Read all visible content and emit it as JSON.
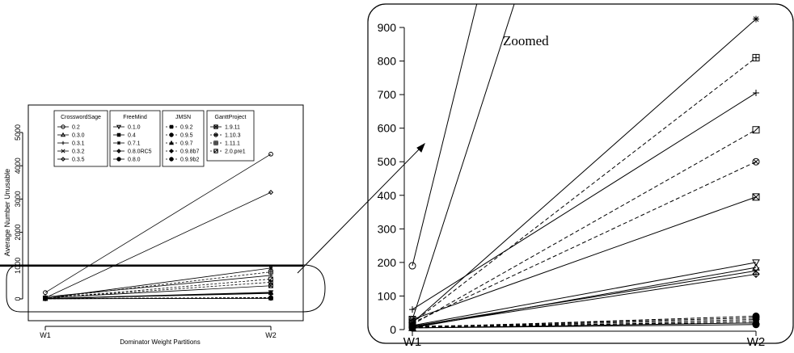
{
  "chart_data": [
    {
      "type": "line",
      "title": "",
      "xlabel": "Dominator Weight Partitions",
      "ylabel": "Average Number Unusable",
      "categories": [
        "W1",
        "W2"
      ],
      "ylim": [
        0,
        5600
      ],
      "yticks": [
        0,
        1000,
        2000,
        3000,
        4000,
        5000
      ],
      "threshold_line": 1000,
      "legend_placement": "top-left",
      "legend_groups": [
        {
          "name": "CrosswordSage",
          "series": [
            {
              "name": "0.2",
              "marker": "circle",
              "dash": "solid",
              "values": [
                190,
                4350
              ]
            },
            {
              "name": "0.3.0",
              "marker": "triangle-up",
              "dash": "solid",
              "values": [
                5,
                185
              ]
            },
            {
              "name": "0.3.1",
              "marker": "plus",
              "dash": "solid",
              "values": [
                60,
                705
              ]
            },
            {
              "name": "0.3.2",
              "marker": "x",
              "dash": "solid",
              "values": [
                10,
                175
              ]
            },
            {
              "name": "0.3.5",
              "marker": "diamond",
              "dash": "solid",
              "values": [
                30,
                3200
              ]
            }
          ]
        },
        {
          "name": "FreeMind",
          "series": [
            {
              "name": "0.1.0",
              "marker": "triangle-down",
              "dash": "solid",
              "values": [
                12,
                200
              ]
            },
            {
              "name": "0.4",
              "marker": "square-filled",
              "dash": "solid",
              "values": [
                5,
                20
              ]
            },
            {
              "name": "0.7.1",
              "marker": "asterisk",
              "dash": "solid",
              "values": [
                20,
                925
              ]
            },
            {
              "name": "0.8.0RC5",
              "marker": "diamond-plus",
              "dash": "solid",
              "values": [
                8,
                165
              ]
            },
            {
              "name": "0.8.0",
              "marker": "circle-filled",
              "dash": "solid",
              "values": [
                5,
                15
              ]
            }
          ]
        },
        {
          "name": "JMSN",
          "series": [
            {
              "name": "0.9.2",
              "marker": "square-filled",
              "dash": "dashed",
              "values": [
                10,
                20
              ]
            },
            {
              "name": "0.9.5",
              "marker": "circle-filled",
              "dash": "dashed",
              "values": [
                8,
                35
              ]
            },
            {
              "name": "0.9.7",
              "marker": "triangle-filled",
              "dash": "dashed",
              "values": [
                5,
                25
              ]
            },
            {
              "name": "0.9.8b7",
              "marker": "diamond-filled",
              "dash": "dashed",
              "values": [
                7,
                30
              ]
            },
            {
              "name": "0.9.9b2",
              "marker": "circle-filled",
              "dash": "dashed",
              "values": [
                6,
                40
              ]
            }
          ]
        },
        {
          "name": "GanttProject",
          "series": [
            {
              "name": "1.9.11",
              "marker": "square-x",
              "dash": "solid",
              "values": [
                30,
                395
              ]
            },
            {
              "name": "1.10.3",
              "marker": "circle-x",
              "dash": "dashed",
              "values": [
                20,
                500
              ]
            },
            {
              "name": "1.11.1",
              "marker": "square-plus",
              "dash": "dashed",
              "values": [
                20,
                810
              ]
            },
            {
              "name": "2.0.pre1",
              "marker": "square-slash",
              "dash": "dashed",
              "values": [
                15,
                595
              ]
            }
          ]
        }
      ]
    },
    {
      "type": "line",
      "title": "Zoomed",
      "xlabel": "",
      "ylabel": "",
      "categories": [
        "W1",
        "W2"
      ],
      "ylim": [
        0,
        930
      ],
      "yticks": [
        0,
        100,
        200,
        300,
        400,
        500,
        600,
        700,
        800,
        900
      ],
      "series_source": "same series as main chart, values below 1000"
    }
  ]
}
